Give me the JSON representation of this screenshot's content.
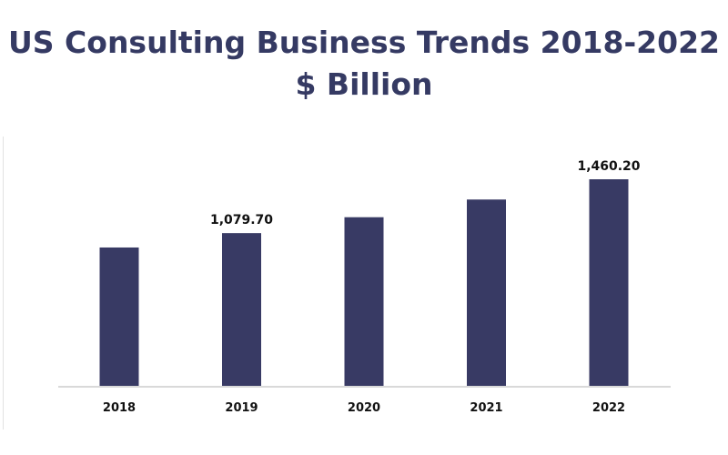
{
  "chart_data": {
    "type": "bar",
    "title": "US Consulting Business Trends 2018-2022 $ Billion",
    "categories": [
      "2018",
      "2019",
      "2020",
      "2021",
      "2022"
    ],
    "values": [
      978,
      1079.7,
      1192,
      1317,
      1460.2
    ],
    "data_labels": [
      "",
      "1,079.70",
      "",
      "",
      "1,460.20"
    ],
    "xlabel": "",
    "ylabel": "",
    "ylim": [
      0,
      1600
    ],
    "grid": false,
    "colors": {
      "bar": "#383a64",
      "axis": "#d9d9d9",
      "title": "#353a63"
    }
  }
}
